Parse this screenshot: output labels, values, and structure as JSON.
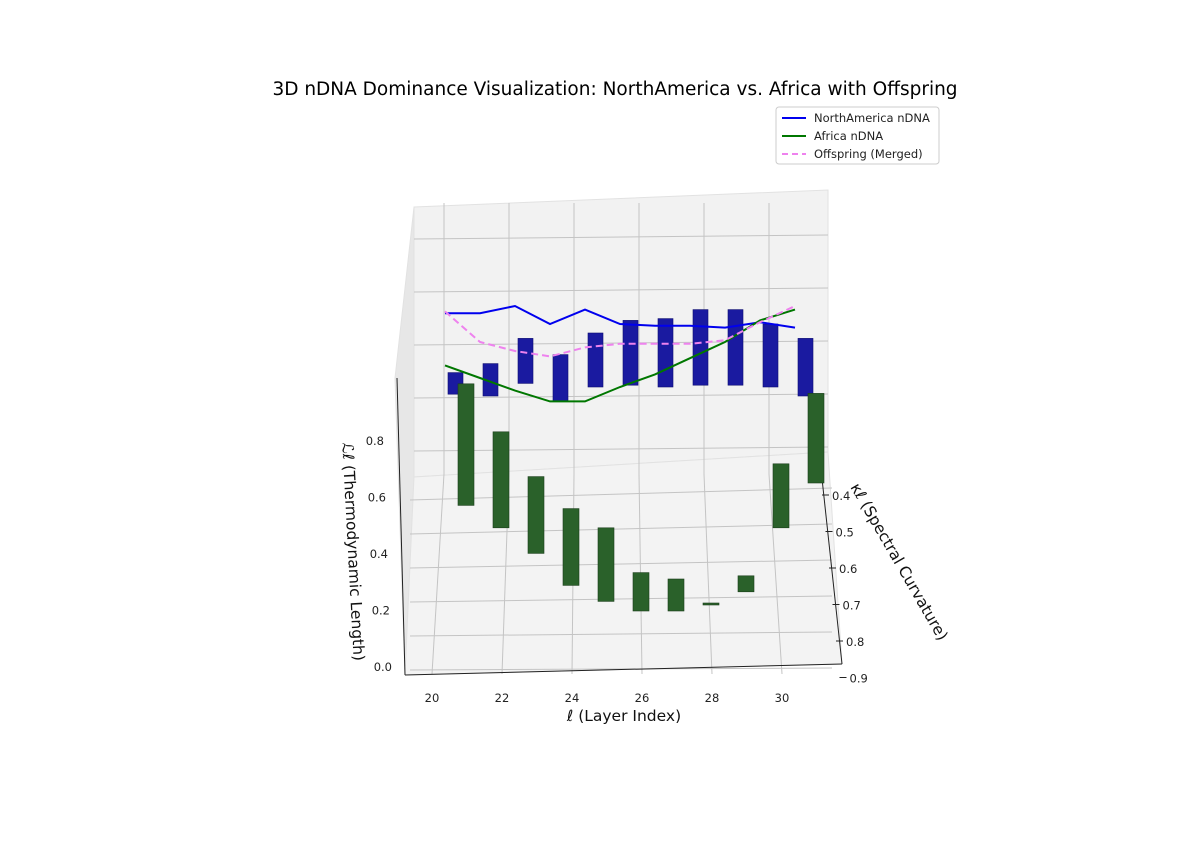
{
  "chart_data": {
    "type": "3d-bar-line",
    "title": "3D nDNA Dominance Visualization: NorthAmerica vs. Africa with Offspring",
    "x_axis": {
      "label": "ℓ (Layer Index)",
      "ticks": [
        "20",
        "22",
        "24",
        "26",
        "28",
        "30"
      ]
    },
    "y_axis": {
      "label": "κℓ (Spectral Curvature)",
      "ticks": [
        "0.4",
        "0.5",
        "0.6",
        "0.7",
        "0.8",
        "0.9"
      ]
    },
    "z_axis": {
      "label": "ℒℓ (Thermodynamic Length)",
      "ticks": [
        "0.0",
        "0.2",
        "0.4",
        "0.6",
        "0.8"
      ]
    },
    "legend": {
      "position": "top-right",
      "entries": [
        {
          "label": "NorthAmerica nDNA",
          "color": "#0000ee",
          "style": "solid"
        },
        {
          "label": "Africa nDNA",
          "color": "#007700",
          "style": "solid"
        },
        {
          "label": "Offspring (Merged)",
          "color": "#ee82ee",
          "style": "dashed"
        }
      ]
    },
    "layers": [
      20,
      21,
      22,
      23,
      24,
      25,
      26,
      27,
      28,
      29,
      30
    ],
    "series": [
      {
        "name": "NorthAmerica nDNA",
        "type": "line",
        "color": "#0000ee",
        "values": [
          0.91,
          0.91,
          0.95,
          0.85,
          0.93,
          0.85,
          0.84,
          0.84,
          0.83,
          0.86,
          0.83
        ]
      },
      {
        "name": "Africa nDNA",
        "type": "line",
        "color": "#007700",
        "values": [
          0.62,
          0.55,
          0.48,
          0.42,
          0.42,
          0.5,
          0.57,
          0.66,
          0.75,
          0.87,
          0.93
        ]
      },
      {
        "name": "Offspring (Merged)",
        "type": "line",
        "color": "#ee82ee",
        "values": [
          0.92,
          0.75,
          0.7,
          0.67,
          0.72,
          0.74,
          0.74,
          0.74,
          0.76,
          0.86,
          0.95
        ]
      }
    ],
    "bars": {
      "northamerica": {
        "color": "#1a1aa0",
        "base": [
          0.46,
          0.45,
          0.52,
          0.42,
          0.5,
          0.51,
          0.5,
          0.51,
          0.51,
          0.5,
          0.45
        ],
        "height": [
          0.12,
          0.18,
          0.25,
          0.26,
          0.3,
          0.36,
          0.38,
          0.42,
          0.42,
          0.35,
          0.32
        ]
      },
      "africa": {
        "color": "#2a612a",
        "base": [
          0.53,
          0.46,
          0.38,
          0.28,
          0.23,
          0.2,
          0.2,
          0.22,
          0.26,
          0.46,
          0.6
        ],
        "height": [
          0.38,
          0.3,
          0.24,
          0.24,
          0.23,
          0.12,
          0.1,
          0.005,
          0.05,
          0.2,
          0.28
        ]
      }
    }
  }
}
